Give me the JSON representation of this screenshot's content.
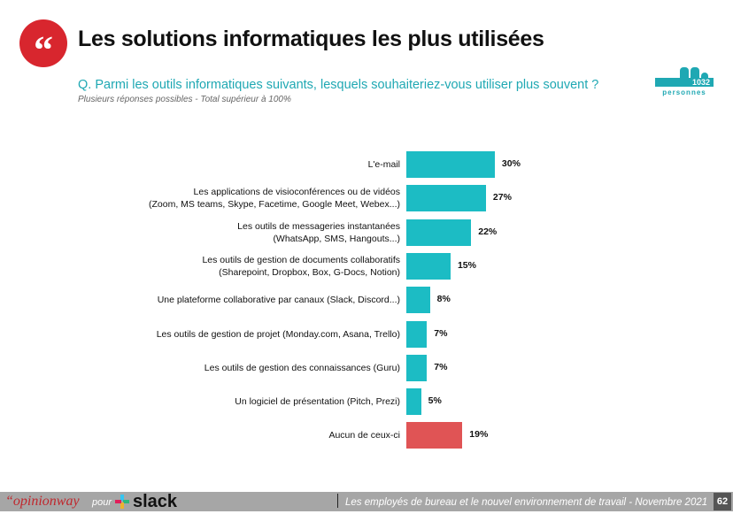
{
  "header": {
    "title": "Les solutions informatiques les plus utilisées",
    "question": "Q. Parmi les outils informatiques suivants, lesquels souhaiteriez-vous utiliser plus souvent ?",
    "note": "Plusieurs réponses possibles - Total supérieur à 100%",
    "sample_size": "1032",
    "sample_label": "personnes",
    "quote_icon": "quote-icon"
  },
  "chart_data": {
    "type": "bar",
    "orientation": "horizontal",
    "categories": [
      [
        "L'e-mail"
      ],
      [
        "Les applications de visioconférences ou de vidéos",
        "(Zoom, MS teams, Skype, Facetime, Google Meet, Webex...)"
      ],
      [
        "Les outils de messageries instantanées",
        "(WhatsApp, SMS, Hangouts...)"
      ],
      [
        "Les outils de gestion de documents collaboratifs",
        "(Sharepoint, Dropbox, Box, G-Docs, Notion)"
      ],
      [
        "Une plateforme collaborative par canaux (Slack, Discord...)"
      ],
      [
        "Les outils de gestion de projet (Monday.com, Asana, Trello)"
      ],
      [
        "Les outils de gestion des connaissances (Guru)"
      ],
      [
        "Un logiciel de présentation (Pitch, Prezi)"
      ],
      [
        "Aucun de ceux-ci"
      ]
    ],
    "values": [
      30,
      27,
      22,
      15,
      8,
      7,
      7,
      5,
      19
    ],
    "value_labels": [
      "30%",
      "27%",
      "22%",
      "15%",
      "8%",
      "7%",
      "7%",
      "5%",
      "19%"
    ],
    "colors": [
      "#1cbcc4",
      "#1cbcc4",
      "#1cbcc4",
      "#1cbcc4",
      "#1cbcc4",
      "#1cbcc4",
      "#1cbcc4",
      "#1cbcc4",
      "#e05455"
    ],
    "grid": false
  },
  "footer": {
    "brand": "“opinionway",
    "pour": "pour",
    "partner": "slack",
    "survey": "Les employés de bureau et le nouvel environnement de travail - Novembre 2021",
    "page": "62"
  }
}
